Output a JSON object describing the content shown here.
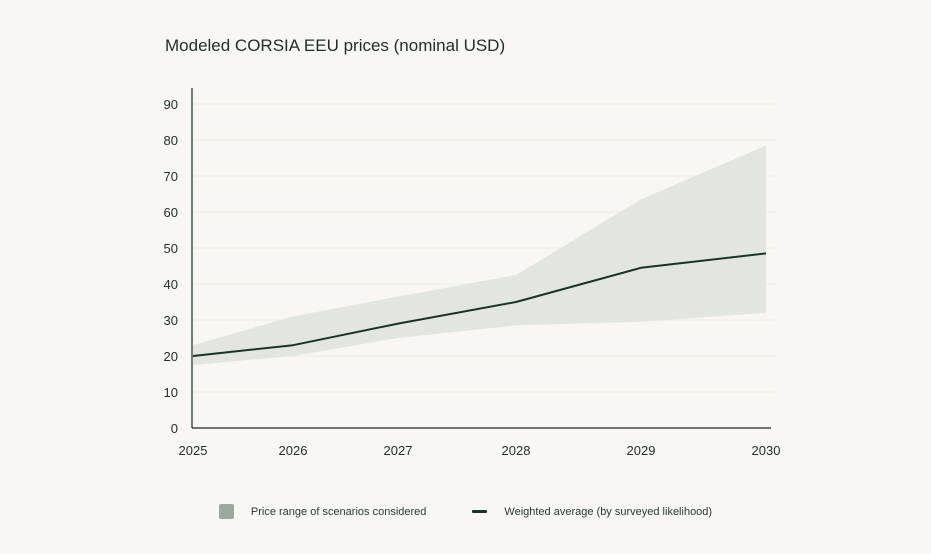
{
  "chart_data": {
    "type": "area",
    "title": "Modeled CORSIA EEU prices (nominal USD)",
    "xlabel": "",
    "ylabel": "",
    "x": [
      2025,
      2026,
      2027,
      2028,
      2029,
      2030
    ],
    "x_tick_labels": [
      "2025",
      "2026",
      "2027",
      "2028",
      "2029",
      "2030"
    ],
    "ylim": [
      0,
      90
    ],
    "y_ticks": [
      0,
      10,
      20,
      30,
      40,
      50,
      60,
      70,
      80,
      90
    ],
    "grid": "horizontal",
    "legend_position": "bottom-center",
    "series": [
      {
        "name": "Price range of scenarios considered",
        "kind": "range",
        "lower": [
          17.5,
          20,
          25,
          28.5,
          29.5,
          32
        ],
        "upper": [
          23,
          31,
          36.5,
          42.5,
          63.5,
          78.5
        ],
        "color": "#e2e6df"
      },
      {
        "name": "Weighted average (by surveyed likelihood)",
        "kind": "line",
        "values": [
          20,
          23,
          29,
          35,
          44.5,
          48.5
        ],
        "color": "#173524"
      }
    ],
    "legend": [
      {
        "label": "Price range of scenarios considered",
        "swatch": "area",
        "color": "#9aab9e"
      },
      {
        "label": "Weighted average (by surveyed likelihood)",
        "swatch": "line",
        "color": "#173524"
      }
    ]
  }
}
